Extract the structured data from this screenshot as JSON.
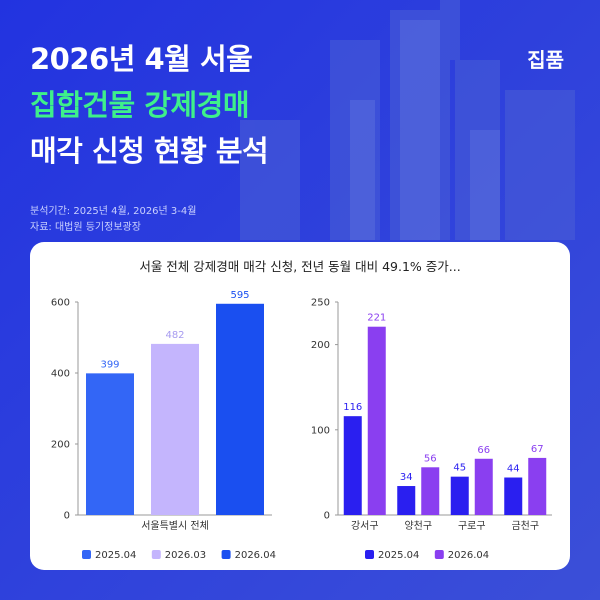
{
  "header": {
    "title_line1": "2026년 4월 서울",
    "title_line2": "집합건물 강제경매",
    "title_line3": "매각 신청 현황 분석",
    "brand": "집품",
    "period": "분석기간: 2025년 4월, 2026년 3-4월",
    "source": "자료: 대법원 등기정보광장"
  },
  "card_title": "서울 전체 강제경매 매각 신청, 전년 동월 대비 49.1% 증가...",
  "colors": {
    "bg": "#2b3fd9",
    "accent_green": "#3ef08a",
    "blue_2025": "#3366f6",
    "lavender_2026_03": "#c4b5fd",
    "blue_2026_04": "#1a4ff0",
    "navy_2025": "#2a1ff0",
    "purple_2026": "#8a3ff0"
  },
  "chart_data": [
    {
      "type": "bar",
      "categories": [
        "서울특별시 전체"
      ],
      "series": [
        {
          "name": "2025.04",
          "values": [
            399
          ]
        },
        {
          "name": "2026.03",
          "values": [
            482
          ]
        },
        {
          "name": "2026.04",
          "values": [
            595
          ]
        }
      ],
      "ylim": [
        0,
        600
      ],
      "yticks": [
        0,
        200,
        400,
        600
      ],
      "grid": false,
      "legend": "bottom"
    },
    {
      "type": "bar",
      "categories": [
        "강서구",
        "양천구",
        "구로구",
        "금천구"
      ],
      "series": [
        {
          "name": "2025.04",
          "values": [
            116,
            34,
            45,
            44
          ]
        },
        {
          "name": "2026.04",
          "values": [
            221,
            56,
            66,
            67
          ]
        }
      ],
      "ylim": [
        0,
        250
      ],
      "yticks": [
        0,
        100,
        200,
        250
      ],
      "grid": false,
      "legend": "bottom"
    }
  ]
}
